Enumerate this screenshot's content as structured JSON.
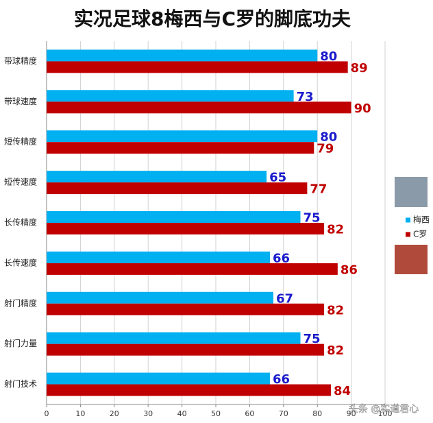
{
  "chart_data": {
    "type": "hbar",
    "title": "实况足球8梅西与C罗的脚底功夫",
    "categories": [
      "带球精度",
      "带球速度",
      "短传精度",
      "短传速度",
      "长传精度",
      "长传速度",
      "射门精度",
      "射门力量",
      "射门技术"
    ],
    "series": [
      {
        "name": "梅西",
        "color": "#00b0f0",
        "label_color": "#1a1acc",
        "values": [
          80,
          73,
          80,
          65,
          75,
          66,
          67,
          75,
          66
        ]
      },
      {
        "name": "C罗",
        "color": "#c00000",
        "label_color": "#c00000",
        "values": [
          89,
          90,
          79,
          77,
          82,
          86,
          82,
          82,
          84
        ]
      }
    ],
    "xlim": [
      0,
      100
    ],
    "xticks": [
      0,
      10,
      20,
      30,
      40,
      50,
      60,
      70,
      80,
      90,
      100
    ],
    "grid": true,
    "watermark": "头条 @实道君心"
  }
}
